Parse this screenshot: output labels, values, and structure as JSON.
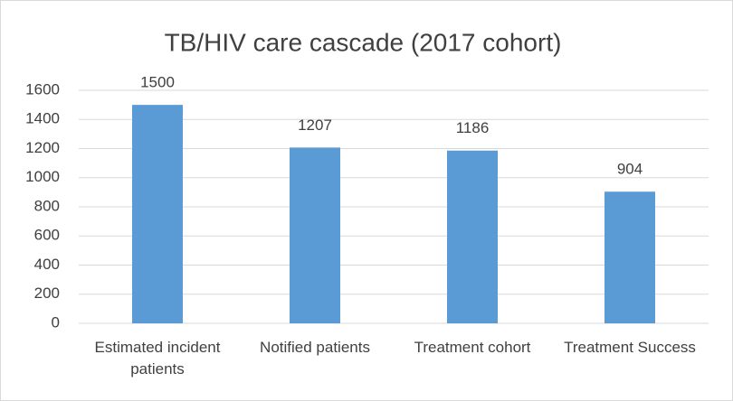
{
  "chart_data": {
    "type": "bar",
    "title": "TB/HIV care cascade (2017 cohort)",
    "categories": [
      "Estimated incident patients",
      "Notified patients",
      "Treatment cohort",
      "Treatment Success"
    ],
    "values": [
      1500,
      1207,
      1186,
      904
    ],
    "color": "#5b9bd5",
    "ylim": [
      0,
      1600
    ],
    "yticks": [
      0,
      200,
      400,
      600,
      800,
      1000,
      1200,
      1400,
      1600
    ],
    "grid": true
  }
}
